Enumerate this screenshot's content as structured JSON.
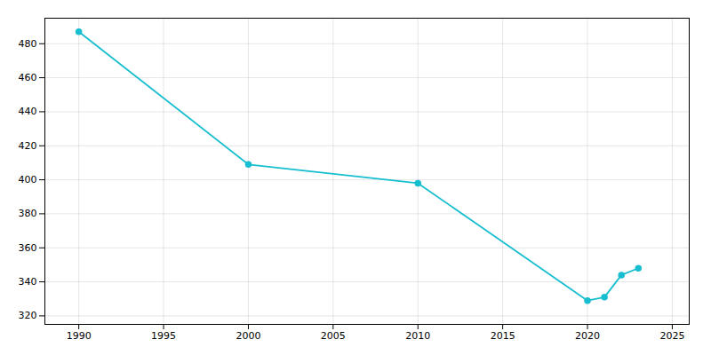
{
  "chart_data": {
    "type": "line",
    "x": [
      1990,
      2000,
      2010,
      2020,
      2021,
      2022,
      2023
    ],
    "values": [
      487,
      409,
      398,
      329,
      331,
      344,
      348
    ],
    "color": "#17BECF",
    "marker": "circle",
    "xlim": [
      1988,
      2026
    ],
    "ylim": [
      315,
      495
    ],
    "xticks": [
      1990,
      1995,
      2000,
      2005,
      2010,
      2015,
      2020,
      2025
    ],
    "yticks": [
      320,
      340,
      360,
      380,
      400,
      420,
      440,
      460,
      480
    ],
    "grid": true
  }
}
